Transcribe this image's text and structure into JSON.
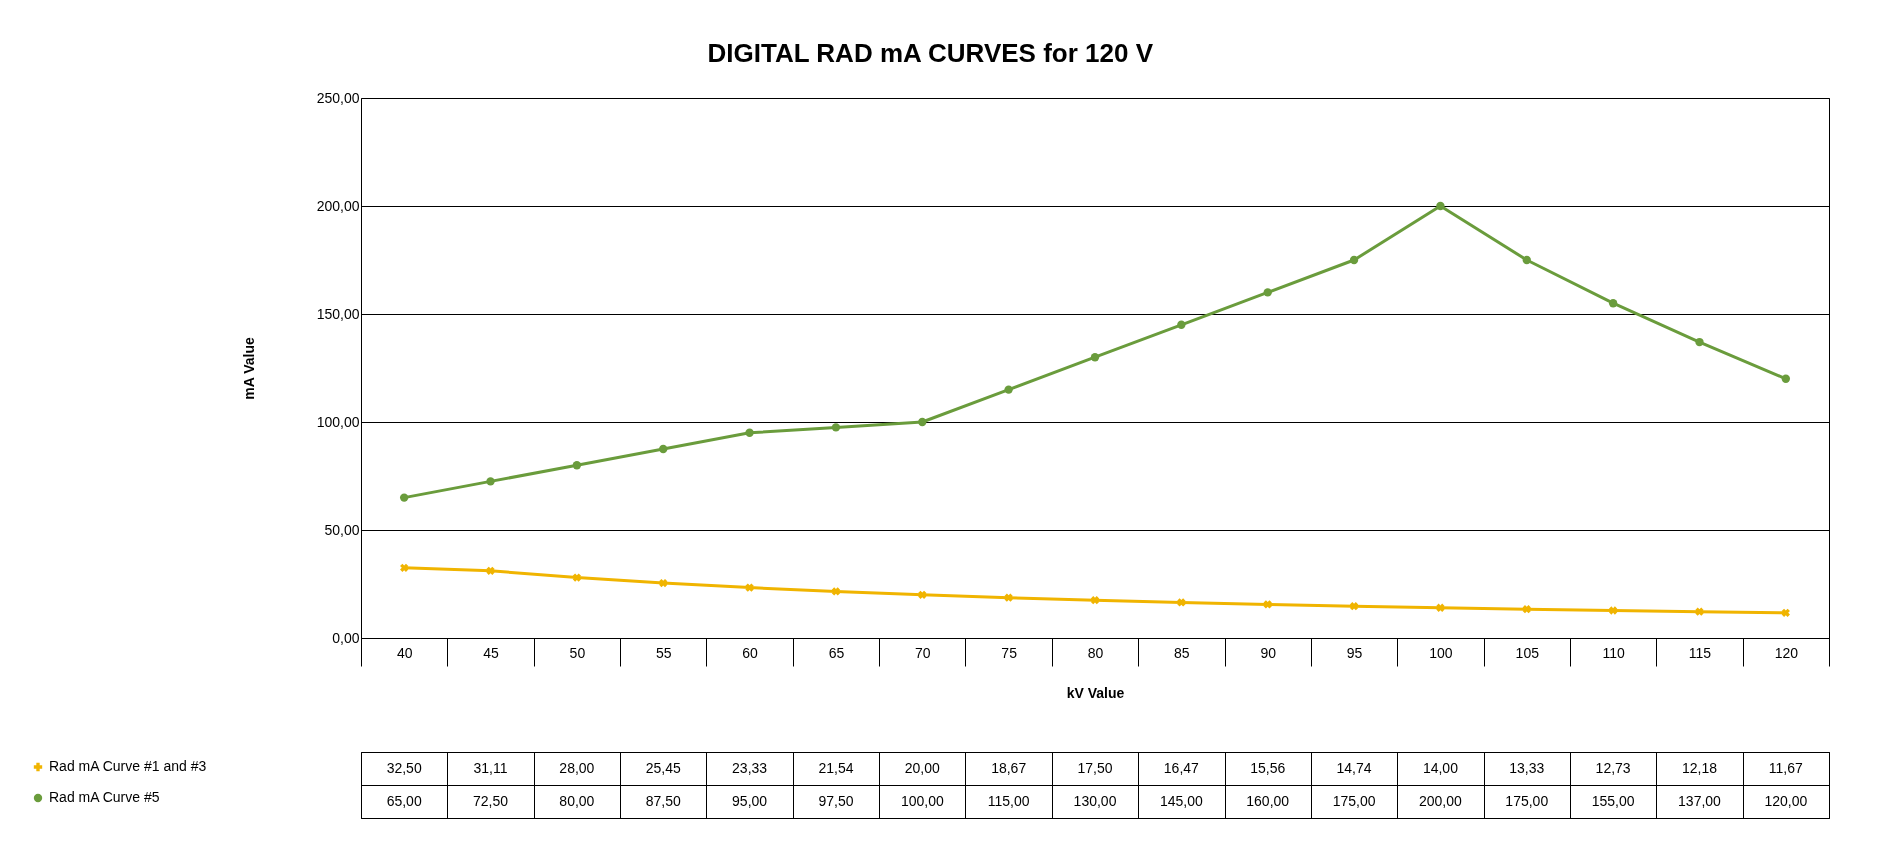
{
  "chart_data": {
    "type": "line",
    "title": "DIGITAL RAD mA CURVES for 120 V",
    "xlabel": "kV Value",
    "ylabel": "mA Value",
    "categories": [
      "40",
      "45",
      "50",
      "55",
      "60",
      "65",
      "70",
      "75",
      "80",
      "85",
      "90",
      "95",
      "100",
      "105",
      "110",
      "115",
      "120"
    ],
    "series": [
      {
        "name": "Rad mA Curve #1 and #3",
        "color": "#f0b400",
        "marker": "cross",
        "values": [
          32.5,
          31.11,
          28.0,
          25.45,
          23.33,
          21.54,
          20.0,
          18.67,
          17.5,
          16.47,
          15.56,
          14.74,
          14.0,
          13.33,
          12.73,
          12.18,
          11.67
        ],
        "value_labels": [
          "32,50",
          "31,11",
          "28,00",
          "25,45",
          "23,33",
          "21,54",
          "20,00",
          "18,67",
          "17,50",
          "16,47",
          "15,56",
          "14,74",
          "14,00",
          "13,33",
          "12,73",
          "12,18",
          "11,67"
        ]
      },
      {
        "name": "Rad mA Curve #5",
        "color": "#6a9c3c",
        "marker": "circle",
        "values": [
          65.0,
          72.5,
          80.0,
          87.5,
          95.0,
          97.5,
          100.0,
          115.0,
          130.0,
          145.0,
          160.0,
          175.0,
          200.0,
          175.0,
          155.0,
          137.0,
          120.0
        ],
        "value_labels": [
          "65,00",
          "72,50",
          "80,00",
          "87,50",
          "95,00",
          "97,50",
          "100,00",
          "115,00",
          "130,00",
          "145,00",
          "160,00",
          "175,00",
          "200,00",
          "175,00",
          "155,00",
          "137,00",
          "120,00"
        ]
      }
    ],
    "ylim": [
      0,
      250
    ],
    "yticks": [
      {
        "value": 0,
        "label": "0,00"
      },
      {
        "value": 50,
        "label": "50,00"
      },
      {
        "value": 100,
        "label": "100,00"
      },
      {
        "value": 150,
        "label": "150,00"
      },
      {
        "value": 200,
        "label": "200,00"
      },
      {
        "value": 250,
        "label": "250,00"
      }
    ],
    "grid": "y",
    "legend": "bottom"
  }
}
